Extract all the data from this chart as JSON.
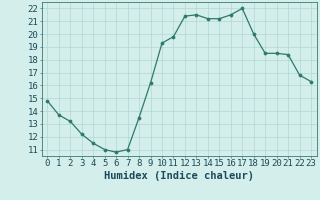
{
  "x": [
    0,
    1,
    2,
    3,
    4,
    5,
    6,
    7,
    8,
    9,
    10,
    11,
    12,
    13,
    14,
    15,
    16,
    17,
    18,
    19,
    20,
    21,
    22,
    23
  ],
  "y": [
    14.8,
    13.7,
    13.2,
    12.2,
    11.5,
    11.0,
    10.8,
    11.0,
    13.5,
    16.2,
    19.3,
    19.8,
    21.4,
    21.5,
    21.2,
    21.2,
    21.5,
    22.0,
    20.0,
    18.5,
    18.5,
    18.4,
    16.8,
    16.3
  ],
  "line_color": "#2d7a6a",
  "bg_color": "#d4eeec",
  "grid_color": "#b0d8d4",
  "xlabel": "Humidex (Indice chaleur)",
  "ylabel_ticks": [
    11,
    12,
    13,
    14,
    15,
    16,
    17,
    18,
    19,
    20,
    21,
    22
  ],
  "xlim": [
    -0.5,
    23.5
  ],
  "ylim": [
    10.5,
    22.5
  ],
  "xlabel_fontsize": 7.5,
  "tick_fontsize": 6.5
}
